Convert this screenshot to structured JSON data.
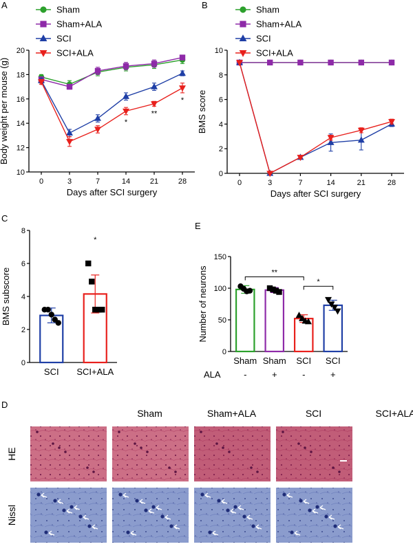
{
  "colors": {
    "sham": "#2ca02c",
    "sham_ala": "#8e2aa8",
    "sci": "#1f3fa6",
    "sci_ala": "#e8201c",
    "he_bg": "#cc6f86",
    "nissl_bg": "#8b9ccd"
  },
  "panels": {
    "A": "A",
    "B": "B",
    "C": "C",
    "D": "D",
    "E": "E"
  },
  "chart_data": [
    {
      "id": "A",
      "type": "line",
      "title": "",
      "xlabel": "Days after SCI surgery",
      "ylabel": "Body weight per mouse (g)",
      "x": [
        "0",
        "3",
        "7",
        "14",
        "21",
        "28"
      ],
      "ylim": [
        10,
        20
      ],
      "yticks": [
        "10",
        "12",
        "14",
        "16",
        "18",
        "20"
      ],
      "series": [
        {
          "name": "Sham",
          "marker": "circle",
          "color_key": "sham",
          "values": [
            17.8,
            17.2,
            18.2,
            18.6,
            18.8,
            19.2
          ],
          "err": [
            0.2,
            0.3,
            0.3,
            0.3,
            0.3,
            0.3
          ]
        },
        {
          "name": "Sham+ALA",
          "marker": "square",
          "color_key": "sham_ala",
          "values": [
            17.6,
            17.0,
            18.3,
            18.7,
            18.9,
            19.4
          ],
          "err": [
            0.2,
            0.2,
            0.3,
            0.3,
            0.3,
            0.2
          ]
        },
        {
          "name": "SCI",
          "marker": "triangle",
          "color_key": "sci",
          "values": [
            17.5,
            13.2,
            14.4,
            16.2,
            17.0,
            18.1
          ],
          "err": [
            0.2,
            0.3,
            0.3,
            0.3,
            0.3,
            0.2
          ]
        },
        {
          "name": "SCI+ALA",
          "marker": "triangle-down",
          "color_key": "sci_ala",
          "values": [
            17.4,
            12.5,
            13.5,
            15.0,
            15.6,
            16.9
          ],
          "err": [
            0.2,
            0.4,
            0.3,
            0.3,
            0.2,
            0.4
          ]
        }
      ],
      "annotations": [
        {
          "x": "14",
          "text": "*"
        },
        {
          "x": "21",
          "text": "**"
        },
        {
          "x": "28",
          "text": "*"
        }
      ]
    },
    {
      "id": "B",
      "type": "line",
      "title": "",
      "xlabel": "Days after SCI surgery",
      "ylabel": "BMS score",
      "x": [
        "0",
        "3",
        "7",
        "14",
        "21",
        "28"
      ],
      "ylim": [
        0,
        10
      ],
      "yticks": [
        "0",
        "2",
        "4",
        "6",
        "8",
        "10"
      ],
      "series": [
        {
          "name": "Sham",
          "marker": "circle",
          "color_key": "sham",
          "values": [
            9,
            9,
            9,
            9,
            9,
            9
          ],
          "err": [
            0,
            0,
            0,
            0,
            0,
            0
          ]
        },
        {
          "name": "Sham+ALA",
          "marker": "square",
          "color_key": "sham_ala",
          "values": [
            9,
            9,
            9,
            9,
            9,
            9
          ],
          "err": [
            0,
            0,
            0,
            0,
            0,
            0
          ]
        },
        {
          "name": "SCI",
          "marker": "triangle",
          "color_key": "sci",
          "values": [
            9,
            0,
            1.3,
            2.5,
            2.7,
            4.0
          ],
          "err": [
            0,
            0,
            0.1,
            0.7,
            0.8,
            0.2
          ]
        },
        {
          "name": "SCI+ALA",
          "marker": "triangle-down",
          "color_key": "sci_ala",
          "values": [
            9,
            0,
            1.3,
            2.9,
            3.5,
            4.2
          ],
          "err": [
            0,
            0,
            0.1,
            0.2,
            0.2,
            0.2
          ]
        }
      ]
    },
    {
      "id": "C",
      "type": "bar",
      "title": "",
      "xlabel": "",
      "ylabel": "BMS subscore",
      "categories": [
        "SCI",
        "SCI+ALA"
      ],
      "ylim": [
        0,
        8
      ],
      "yticks": [
        "0",
        "2",
        "4",
        "6",
        "8"
      ],
      "values": [
        2.85,
        4.15
      ],
      "err": [
        0.45,
        1.15
      ],
      "bar_colors": [
        "sci",
        "sci_ala"
      ],
      "points": [
        [
          3.2,
          3.2,
          2.9,
          2.6,
          2.4
        ],
        [
          6.0,
          4.9,
          3.2,
          3.2,
          3.2
        ]
      ],
      "point_markers": [
        "circle",
        "square"
      ],
      "annotations": [
        {
          "category": "SCI+ALA",
          "text": "*"
        }
      ]
    },
    {
      "id": "E",
      "type": "bar",
      "title": "",
      "xlabel": "",
      "ylabel": "Number of neurons",
      "categories": [
        "Sham",
        "Sham",
        "SCI",
        "SCI"
      ],
      "ala_label": "ALA",
      "ala_signs": [
        "-",
        "+",
        "-",
        "+"
      ],
      "ylim": [
        0,
        150
      ],
      "yticks": [
        "0",
        "50",
        "100",
        "150"
      ],
      "values": [
        98,
        97,
        52,
        73
      ],
      "err": [
        6,
        4,
        6,
        8
      ],
      "bar_colors": [
        "sham",
        "sham_ala",
        "sci_ala",
        "sci"
      ],
      "points": [
        [
          103,
          99,
          95,
          96
        ],
        [
          100,
          98,
          96,
          94
        ],
        [
          57,
          52,
          48,
          47
        ],
        [
          82,
          75,
          70,
          64
        ]
      ],
      "point_markers": [
        "circle",
        "square",
        "triangle",
        "triangle-down"
      ],
      "brackets": [
        {
          "from": 0,
          "to": 2,
          "text": "**"
        },
        {
          "from": 2,
          "to": 3,
          "text": "*"
        }
      ]
    }
  ],
  "histology": {
    "columns": [
      "Sham",
      "Sham+ALA",
      "SCI",
      "SCI+ALA"
    ],
    "rows": [
      "HE",
      "Nissl"
    ]
  }
}
